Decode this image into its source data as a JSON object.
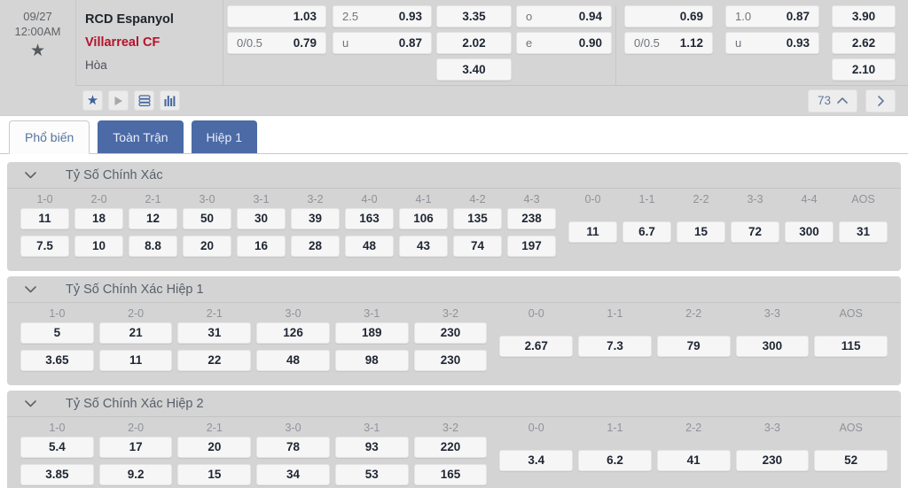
{
  "match": {
    "date": "09/27",
    "time": "12:00AM",
    "home_team": "RCD Espanyol",
    "away_team": "Villarreal CF",
    "draw_label": "Hòa",
    "markets_count": "73",
    "odds_columns": [
      {
        "group": 1,
        "centered": false,
        "cells": [
          {
            "label": "",
            "value": "1.03"
          },
          {
            "label": "0/0.5",
            "value": "0.79"
          }
        ]
      },
      {
        "group": 1,
        "centered": false,
        "cells": [
          {
            "label": "2.5",
            "value": "0.93"
          },
          {
            "label": "u",
            "value": "0.87"
          }
        ]
      },
      {
        "group": 1,
        "centered": true,
        "cells": [
          {
            "label": "",
            "value": "3.35"
          },
          {
            "label": "",
            "value": "2.02"
          },
          {
            "label": "",
            "value": "3.40"
          }
        ]
      },
      {
        "group": 1,
        "centered": false,
        "cells": [
          {
            "label": "o",
            "value": "0.94"
          },
          {
            "label": "e",
            "value": "0.90"
          }
        ]
      },
      {
        "group": 2,
        "centered": false,
        "cells": [
          {
            "label": "",
            "value": "0.69"
          },
          {
            "label": "0/0.5",
            "value": "1.12"
          }
        ]
      },
      {
        "group": 2,
        "centered": false,
        "cells": [
          {
            "label": "1.0",
            "value": "0.87"
          },
          {
            "label": "u",
            "value": "0.93"
          }
        ]
      },
      {
        "group": 2,
        "centered": true,
        "cells": [
          {
            "label": "",
            "value": "3.90"
          },
          {
            "label": "",
            "value": "2.62"
          },
          {
            "label": "",
            "value": "2.10"
          }
        ]
      }
    ],
    "toolbar_icons": [
      "favorite-star",
      "play",
      "stats-stack",
      "bar-chart"
    ]
  },
  "tabs": [
    {
      "label": "Phổ biến",
      "active": true
    },
    {
      "label": "Toàn Trận",
      "active": false
    },
    {
      "label": "Hiệp 1",
      "active": false
    }
  ],
  "panels": [
    {
      "title": "Tỷ Số Chính Xác",
      "left": {
        "headers": [
          "1-0",
          "2-0",
          "2-1",
          "3-0",
          "3-1",
          "3-2",
          "4-0",
          "4-1",
          "4-2",
          "4-3"
        ],
        "rows": [
          [
            "11",
            "18",
            "12",
            "50",
            "30",
            "39",
            "163",
            "106",
            "135",
            "238"
          ],
          [
            "7.5",
            "10",
            "8.8",
            "20",
            "16",
            "28",
            "48",
            "43",
            "74",
            "197"
          ]
        ]
      },
      "right": {
        "headers": [
          "0-0",
          "1-1",
          "2-2",
          "3-3",
          "4-4",
          "AOS"
        ],
        "row": [
          "11",
          "6.7",
          "15",
          "72",
          "300",
          "31"
        ]
      }
    },
    {
      "title": "Tỷ Số Chính Xác Hiệp 1",
      "left": {
        "headers": [
          "1-0",
          "2-0",
          "2-1",
          "3-0",
          "3-1",
          "3-2"
        ],
        "rows": [
          [
            "5",
            "21",
            "31",
            "126",
            "189",
            "230"
          ],
          [
            "3.65",
            "11",
            "22",
            "48",
            "98",
            "230"
          ]
        ]
      },
      "right": {
        "headers": [
          "0-0",
          "1-1",
          "2-2",
          "3-3",
          "AOS"
        ],
        "row": [
          "2.67",
          "7.3",
          "79",
          "300",
          "115"
        ]
      }
    },
    {
      "title": "Tỷ Số Chính Xác Hiệp 2",
      "left": {
        "headers": [
          "1-0",
          "2-0",
          "2-1",
          "3-0",
          "3-1",
          "3-2"
        ],
        "rows": [
          [
            "5.4",
            "17",
            "20",
            "78",
            "93",
            "220"
          ],
          [
            "3.85",
            "9.2",
            "15",
            "34",
            "53",
            "165"
          ]
        ]
      },
      "right": {
        "headers": [
          "0-0",
          "1-1",
          "2-2",
          "3-3",
          "AOS"
        ],
        "row": [
          "3.4",
          "6.2",
          "41",
          "230",
          "52"
        ]
      }
    }
  ],
  "colors": {
    "accent_blue": "#4b6aa6",
    "away_red": "#b5122b",
    "panel_bg": "#d4d4d4",
    "cell_bg": "#f6f6f6"
  }
}
